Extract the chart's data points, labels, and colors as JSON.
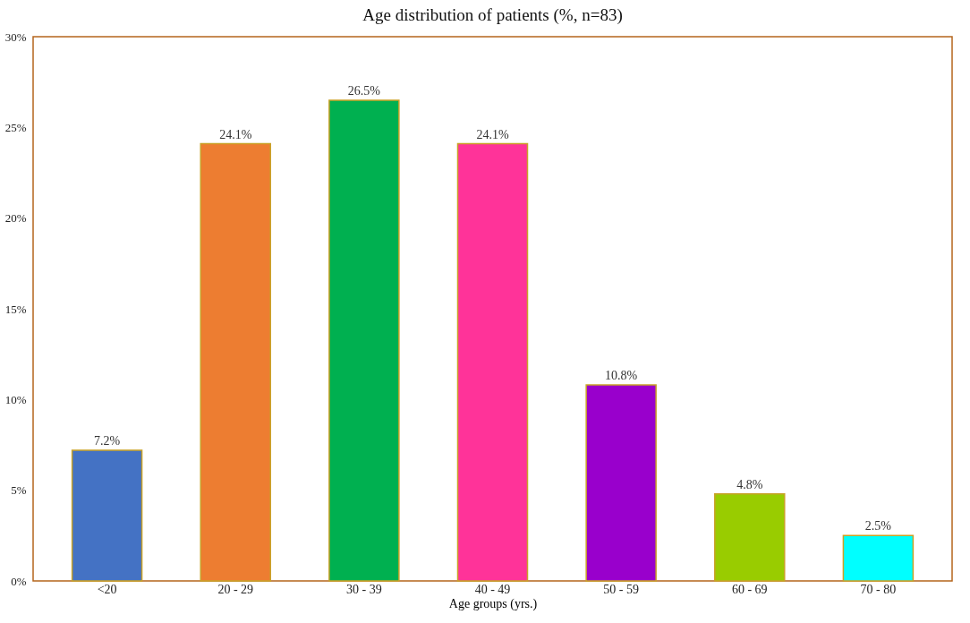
{
  "chart_data": {
    "type": "bar",
    "title": "Age distribution of patients (%, n=83)",
    "xlabel": "Age groups (yrs.)",
    "categories": [
      "<20",
      "20 - 29",
      "30 - 39",
      "40 - 49",
      "50 - 59",
      "60 - 69",
      "70 - 80"
    ],
    "values": [
      7.2,
      24.1,
      26.5,
      24.1,
      10.8,
      4.8,
      2.5
    ],
    "value_labels": [
      "7.2%",
      "24.1%",
      "26.5%",
      "24.1%",
      "10.8%",
      "4.8%",
      "2.5%"
    ],
    "colors": [
      "#4472c4",
      "#ed7d31",
      "#00b050",
      "#ff3399",
      "#9900cc",
      "#99cc00",
      "#00ffff"
    ],
    "ylim": [
      0,
      30
    ],
    "yticks": [
      {
        "value": 0,
        "label": "0%"
      },
      {
        "value": 5,
        "label": "5%"
      },
      {
        "value": 10,
        "label": "10%"
      },
      {
        "value": 15,
        "label": "15%"
      },
      {
        "value": 20,
        "label": "20%"
      },
      {
        "value": 25,
        "label": "25%"
      },
      {
        "value": 30,
        "label": "30%"
      }
    ],
    "grid": false
  }
}
